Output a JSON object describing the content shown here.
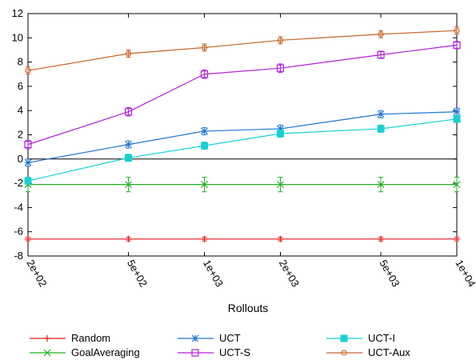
{
  "chart_data": {
    "type": "line",
    "title": "",
    "xlabel": "Rollouts",
    "ylabel": "",
    "xscale": "log",
    "x": [
      200,
      500,
      1000,
      2000,
      5000,
      10000
    ],
    "x_tick_labels": [
      "2e+02",
      "5e+02",
      "1e+03",
      "2e+03",
      "5e+03",
      "1e+04"
    ],
    "ylim": [
      -8,
      12
    ],
    "y_ticks": [
      -8,
      -6,
      -4,
      -2,
      0,
      2,
      4,
      6,
      8,
      10,
      12
    ],
    "y_tick_labels": [
      "-8",
      "-6",
      "-4",
      "-2",
      "0",
      "2",
      "4",
      "6",
      "8",
      "10",
      "12"
    ],
    "zero_line": true,
    "grid": false,
    "legend_position": "bottom",
    "series": [
      {
        "name": "Random",
        "color": "#e41a1c",
        "marker": "plus",
        "values": [
          -6.6,
          -6.6,
          -6.6,
          -6.6,
          -6.6,
          -6.6
        ],
        "error": [
          0.15,
          0.15,
          0.15,
          0.15,
          0.15,
          0.15
        ]
      },
      {
        "name": "GoalAveraging",
        "color": "#22b022",
        "marker": "cross",
        "values": [
          -2.1,
          -2.1,
          -2.1,
          -2.1,
          -2.1,
          -2.1
        ],
        "error": [
          0.6,
          0.6,
          0.6,
          0.6,
          0.6,
          0.6
        ]
      },
      {
        "name": "UCT",
        "color": "#1f77d4",
        "marker": "asterisk",
        "values": [
          -0.3,
          1.2,
          2.3,
          2.5,
          3.7,
          3.9
        ],
        "error": [
          0.3,
          0.3,
          0.3,
          0.3,
          0.3,
          0.3
        ]
      },
      {
        "name": "UCT-S",
        "color": "#b020d8",
        "marker": "square-open",
        "values": [
          1.2,
          3.9,
          7.0,
          7.5,
          8.6,
          9.4
        ],
        "error": [
          0.35,
          0.35,
          0.35,
          0.35,
          0.3,
          0.3
        ]
      },
      {
        "name": "UCT-I",
        "color": "#17d1d1",
        "marker": "square-filled",
        "values": [
          -1.8,
          0.1,
          1.1,
          2.1,
          2.5,
          3.3
        ],
        "error": [
          0.3,
          0.3,
          0.3,
          0.3,
          0.3,
          0.3
        ]
      },
      {
        "name": "UCT-Aux",
        "color": "#c8642a",
        "marker": "circle",
        "values": [
          7.3,
          8.7,
          9.2,
          9.8,
          10.3,
          10.6
        ],
        "error": [
          0.3,
          0.3,
          0.3,
          0.3,
          0.3,
          0.3
        ]
      }
    ]
  }
}
